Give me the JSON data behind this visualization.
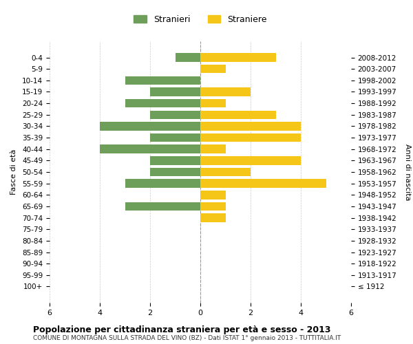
{
  "age_groups": [
    "100+",
    "95-99",
    "90-94",
    "85-89",
    "80-84",
    "75-79",
    "70-74",
    "65-69",
    "60-64",
    "55-59",
    "50-54",
    "45-49",
    "40-44",
    "35-39",
    "30-34",
    "25-29",
    "20-24",
    "15-19",
    "10-14",
    "5-9",
    "0-4"
  ],
  "birth_years": [
    "≤ 1912",
    "1913-1917",
    "1918-1922",
    "1923-1927",
    "1928-1932",
    "1933-1937",
    "1938-1942",
    "1943-1947",
    "1948-1952",
    "1953-1957",
    "1958-1962",
    "1963-1967",
    "1968-1972",
    "1973-1977",
    "1978-1982",
    "1983-1987",
    "1988-1992",
    "1993-1997",
    "1998-2002",
    "2003-2007",
    "2008-2012"
  ],
  "males": [
    0,
    0,
    0,
    0,
    0,
    0,
    0,
    3,
    0,
    3,
    2,
    2,
    4,
    2,
    4,
    2,
    3,
    2,
    3,
    0,
    1
  ],
  "females": [
    0,
    0,
    0,
    0,
    0,
    0,
    1,
    1,
    1,
    5,
    2,
    4,
    1,
    4,
    4,
    3,
    1,
    2,
    0,
    1,
    3
  ],
  "male_color": "#6d9e5a",
  "female_color": "#f5c518",
  "title": "Popolazione per cittadinanza straniera per età e sesso - 2013",
  "subtitle": "COMUNE DI MONTAGNA SULLA STRADA DEL VINO (BZ) - Dati ISTAT 1° gennaio 2013 - TUTTITALIA.IT",
  "ylabel_left": "Fasce di età",
  "ylabel_right": "Anni di nascita",
  "legend_male": "Stranieri",
  "legend_female": "Straniere",
  "xlim": 6,
  "background_color": "#ffffff",
  "grid_color": "#cccccc",
  "bar_height": 0.75
}
